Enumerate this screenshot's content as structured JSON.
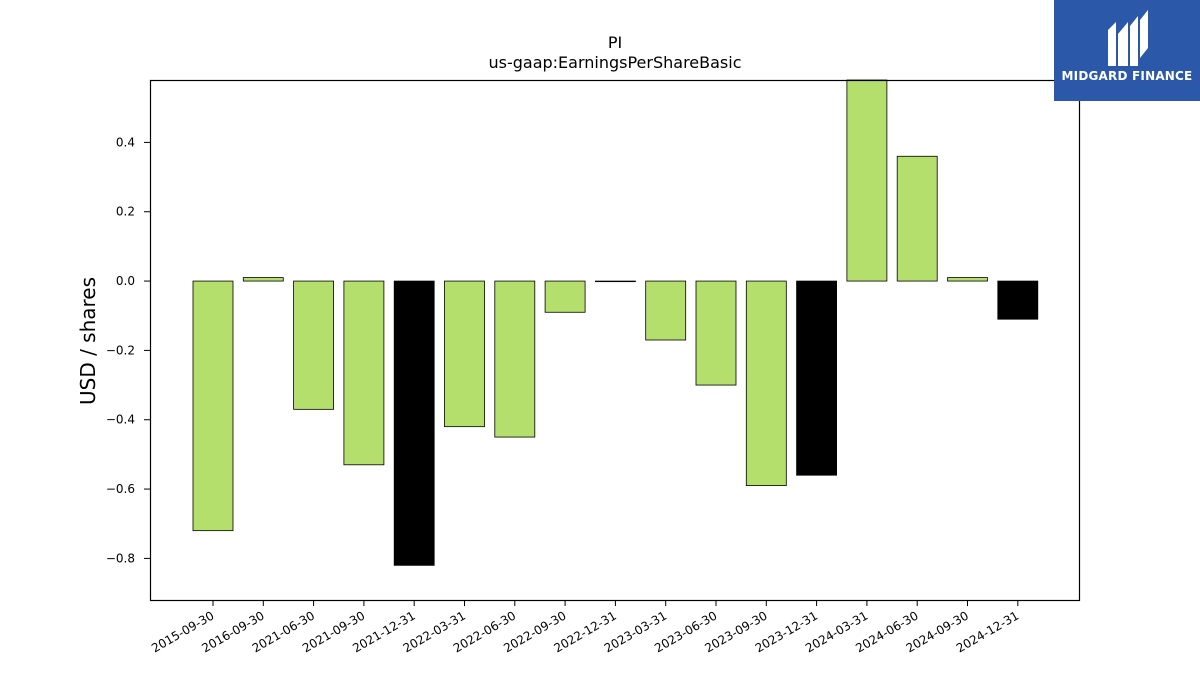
{
  "chart_data": {
    "type": "bar",
    "title": "PI",
    "subtitle": "us-gaap:EarningsPerShareBasic",
    "xlabel": "",
    "ylabel": "USD / shares",
    "ylim": [
      -0.92,
      0.58
    ],
    "yticks": [
      -0.8,
      -0.6,
      -0.4,
      -0.2,
      0.0,
      0.2,
      0.4
    ],
    "ytick_labels": [
      "−0.8",
      "−0.6",
      "−0.4",
      "−0.2",
      "0.0",
      "0.2",
      "0.4"
    ],
    "categories": [
      "2015-09-30",
      "2016-09-30",
      "2021-06-30",
      "2021-09-30",
      "2021-12-31",
      "2022-03-31",
      "2022-06-30",
      "2022-09-30",
      "2022-12-31",
      "2023-03-31",
      "2023-06-30",
      "2023-09-30",
      "2023-12-31",
      "2024-03-31",
      "2024-06-30",
      "2024-09-30",
      "2024-12-31"
    ],
    "values": [
      -0.72,
      0.01,
      -0.37,
      -0.53,
      -0.82,
      -0.42,
      -0.45,
      -0.09,
      0.0,
      -0.17,
      -0.3,
      -0.59,
      -0.56,
      0.58,
      0.36,
      0.01,
      -0.11
    ],
    "bar_colors": [
      "#b5df6c",
      "#b5df6c",
      "#b5df6c",
      "#b5df6c",
      "#000000",
      "#b5df6c",
      "#b5df6c",
      "#b5df6c",
      "#b5df6c",
      "#b5df6c",
      "#b5df6c",
      "#b5df6c",
      "#000000",
      "#b5df6c",
      "#b5df6c",
      "#b5df6c",
      "#000000"
    ],
    "grid": false
  },
  "logo": {
    "text": "MIDGARD FINANCE",
    "background": "#2b58a8"
  }
}
